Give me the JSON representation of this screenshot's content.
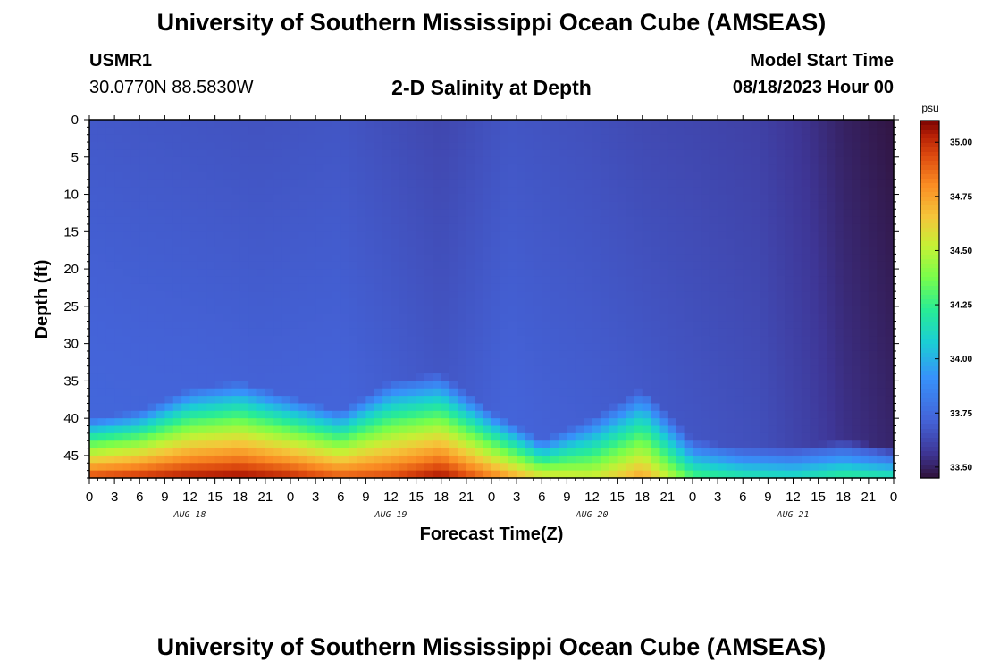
{
  "header": {
    "title": "University of Southern Mississippi Ocean Cube (AMSEAS)",
    "station_id": "USMR1",
    "station_coords": "30.0770N  88.5830W",
    "plot_title": "2-D Salinity at Depth",
    "model_start_label": "Model Start Time",
    "model_start_value": "08/18/2023 Hour 00"
  },
  "footer": {
    "title": "University of Southern Mississippi Ocean Cube (AMSEAS)"
  },
  "colors": {
    "background": "#ffffff",
    "axis": "#000000"
  },
  "chart_data": {
    "type": "heatmap",
    "title": "2-D Salinity at Depth",
    "xlabel": "Forecast Time(Z)",
    "ylabel": "Depth (ft)",
    "colorbar_label": "psu",
    "x_range_hours": [
      0,
      96
    ],
    "x_tick_step_hours": 3,
    "x_tick_labels": [
      "0",
      "3",
      "6",
      "9",
      "12",
      "15",
      "18",
      "21",
      "0",
      "3",
      "6",
      "9",
      "12",
      "15",
      "18",
      "21",
      "0",
      "3",
      "6",
      "9",
      "12",
      "15",
      "18",
      "21",
      "0",
      "3",
      "6",
      "9",
      "12",
      "15",
      "18",
      "21",
      "0"
    ],
    "day_labels": [
      {
        "label": "AUG 18",
        "hour": 12
      },
      {
        "label": "AUG 19",
        "hour": 36
      },
      {
        "label": "AUG 20",
        "hour": 60
      },
      {
        "label": "AUG 21",
        "hour": 84
      }
    ],
    "y_range_ft": [
      0,
      48
    ],
    "y_ticks": [
      0,
      5,
      10,
      15,
      20,
      25,
      30,
      35,
      40,
      45
    ],
    "colorbar_range": [
      33.45,
      35.1
    ],
    "colorbar_ticks": [
      "35.00",
      "34.75",
      "34.50",
      "34.25",
      "34.00",
      "33.75",
      "33.50"
    ],
    "surface_salinity_psu": [
      {
        "hour": 0,
        "value": 33.68
      },
      {
        "hour": 10,
        "value": 33.67
      },
      {
        "hour": 20,
        "value": 33.66
      },
      {
        "hour": 30,
        "value": 33.67
      },
      {
        "hour": 42,
        "value": 33.62
      },
      {
        "hour": 50,
        "value": 33.67
      },
      {
        "hour": 60,
        "value": 33.65
      },
      {
        "hour": 66,
        "value": 33.63
      },
      {
        "hour": 72,
        "value": 33.62
      },
      {
        "hour": 80,
        "value": 33.6
      },
      {
        "hour": 86,
        "value": 33.55
      },
      {
        "hour": 90,
        "value": 33.5
      },
      {
        "hour": 93,
        "value": 33.48
      },
      {
        "hour": 96,
        "value": 33.46
      }
    ],
    "bottom_salinity_psu": [
      {
        "hour": 0,
        "value": 34.95
      },
      {
        "hour": 6,
        "value": 35.0
      },
      {
        "hour": 12,
        "value": 35.05
      },
      {
        "hour": 18,
        "value": 35.08
      },
      {
        "hour": 24,
        "value": 35.02
      },
      {
        "hour": 30,
        "value": 34.92
      },
      {
        "hour": 36,
        "value": 34.95
      },
      {
        "hour": 42,
        "value": 35.07
      },
      {
        "hour": 48,
        "value": 34.85
      },
      {
        "hour": 54,
        "value": 34.6
      },
      {
        "hour": 60,
        "value": 34.55
      },
      {
        "hour": 66,
        "value": 34.75
      },
      {
        "hour": 72,
        "value": 34.3
      },
      {
        "hour": 78,
        "value": 34.2
      },
      {
        "hour": 84,
        "value": 34.15
      },
      {
        "hour": 90,
        "value": 34.25
      },
      {
        "hour": 96,
        "value": 34.2
      }
    ],
    "halocline_top_depth_ft": [
      {
        "hour": 0,
        "value": 40
      },
      {
        "hour": 6,
        "value": 39
      },
      {
        "hour": 12,
        "value": 36
      },
      {
        "hour": 18,
        "value": 35
      },
      {
        "hour": 24,
        "value": 37
      },
      {
        "hour": 30,
        "value": 39
      },
      {
        "hour": 36,
        "value": 35
      },
      {
        "hour": 42,
        "value": 34
      },
      {
        "hour": 48,
        "value": 39
      },
      {
        "hour": 54,
        "value": 43
      },
      {
        "hour": 60,
        "value": 40
      },
      {
        "hour": 66,
        "value": 36
      },
      {
        "hour": 72,
        "value": 43
      },
      {
        "hour": 78,
        "value": 44
      },
      {
        "hour": 84,
        "value": 44
      },
      {
        "hour": 90,
        "value": 43
      },
      {
        "hour": 96,
        "value": 44
      }
    ]
  }
}
